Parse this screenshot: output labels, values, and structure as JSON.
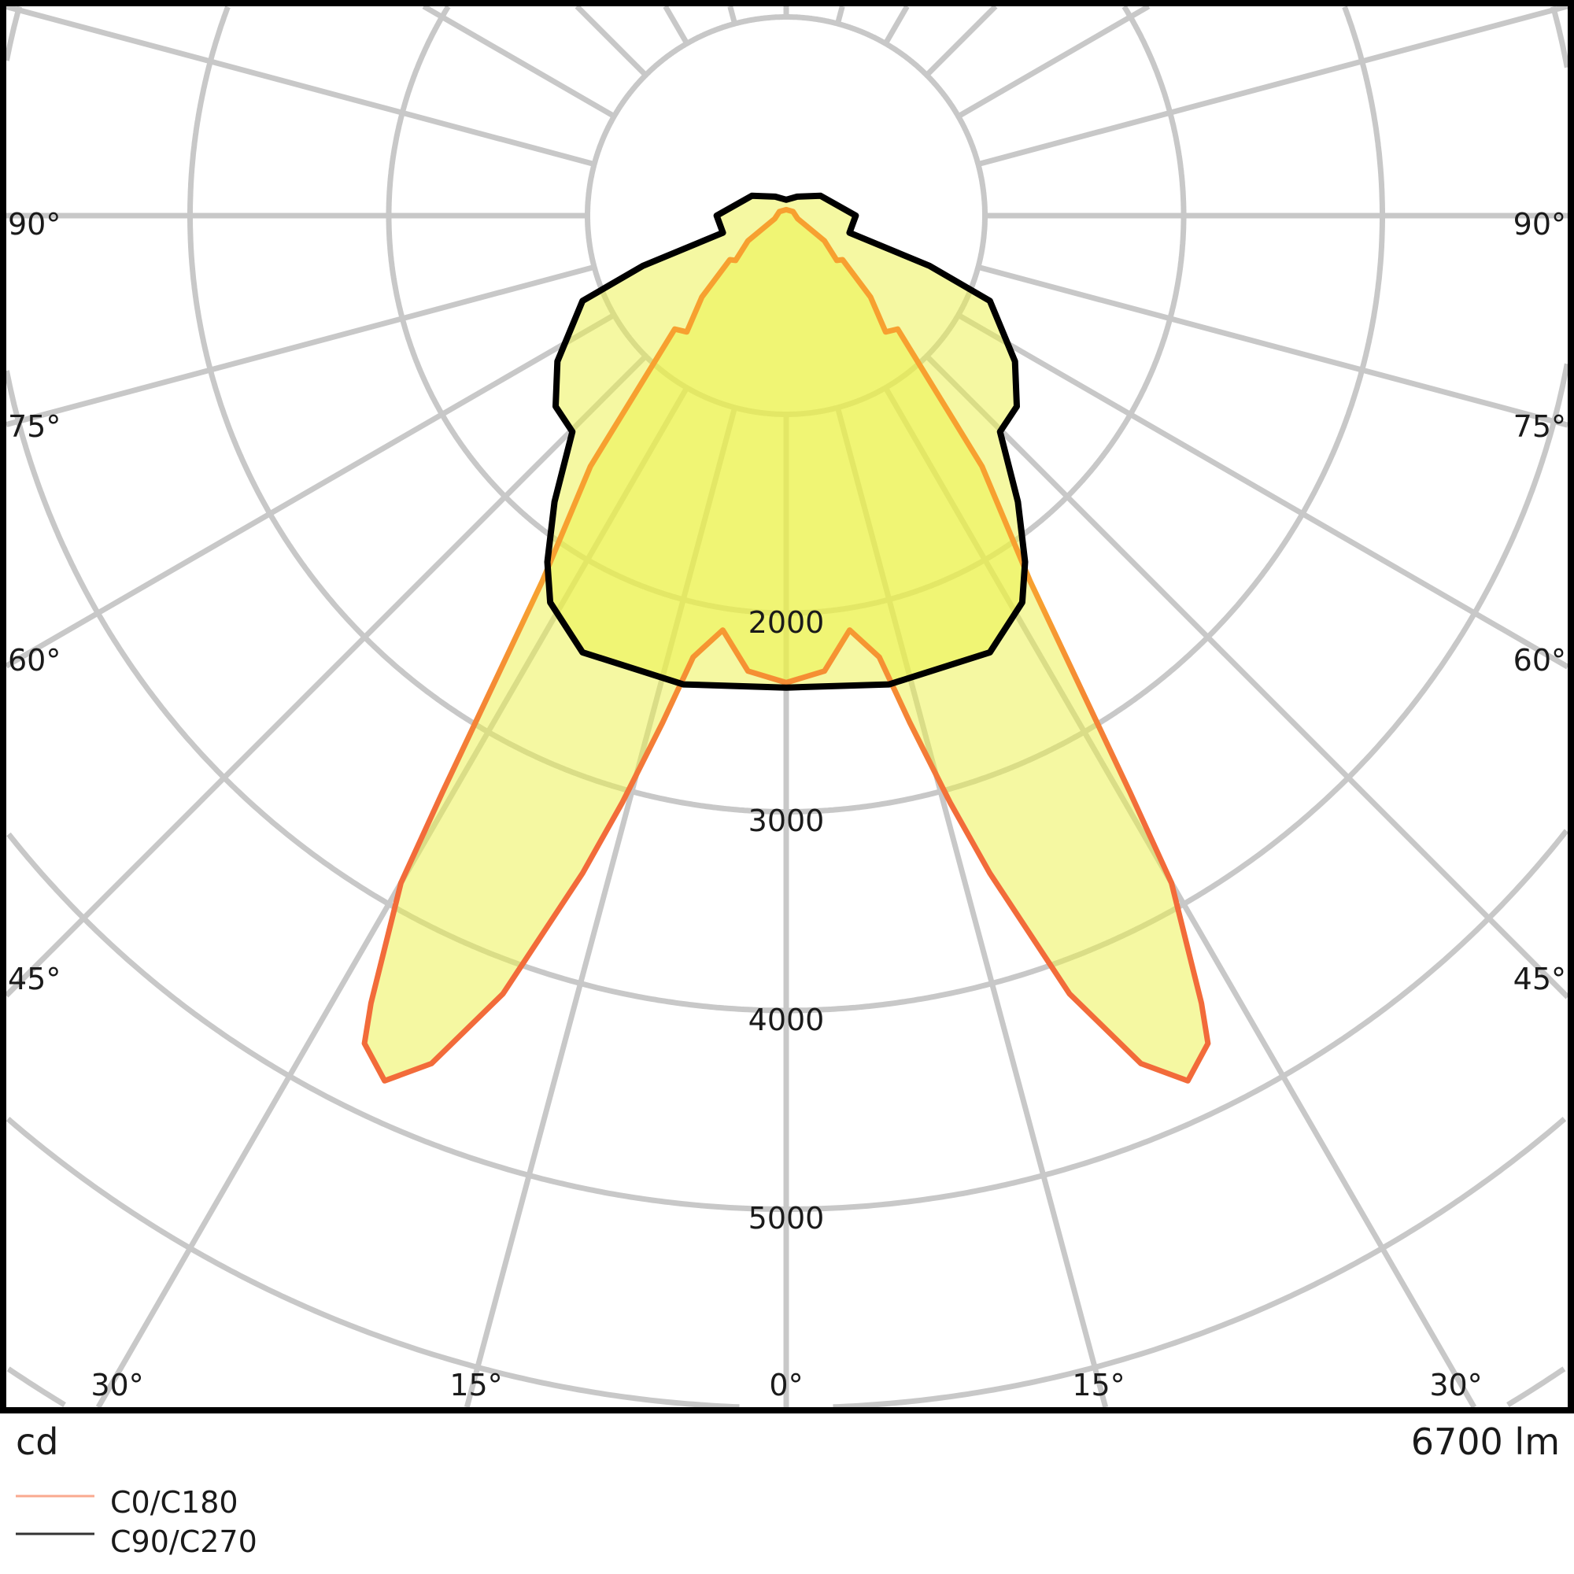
{
  "chart_data": {
    "type": "polar",
    "unit_label": "cd",
    "flux_label": "6700 lm",
    "radial_ticks": [
      1000,
      2000,
      3000,
      4000,
      5000,
      6000,
      7000
    ],
    "radial_tick_labels": [
      "2000",
      "3000",
      "4000",
      "5000"
    ],
    "angle_step_deg": 15,
    "angle_labels": {
      "side": [
        "90°",
        "75°",
        "60°",
        "45°"
      ],
      "bottom": [
        "30°",
        "15°",
        "0°",
        "15°",
        "30°"
      ]
    },
    "grid": true,
    "legend_placement": "bottom-left",
    "series": [
      {
        "name": "C0/C180",
        "color": "#f26b3a",
        "color_upper": "#f7a030",
        "points": [
          [
            0,
            2350
          ],
          [
            4.8,
            2300
          ],
          [
            8.7,
            2110
          ],
          [
            11.9,
            2270
          ],
          [
            13.7,
            2625
          ],
          [
            15.6,
            3066
          ],
          [
            17.2,
            3463
          ],
          [
            20,
            4167
          ],
          [
            22.7,
            4625
          ],
          [
            24.9,
            4800
          ],
          [
            27,
            4675
          ],
          [
            27.8,
            4480
          ],
          [
            30,
            3877
          ],
          [
            30.8,
            3380
          ],
          [
            33.7,
            2215
          ],
          [
            38,
            1600
          ],
          [
            44.5,
            800
          ],
          [
            40.5,
            770
          ],
          [
            46,
            590
          ],
          [
            52,
            360
          ],
          [
            48.5,
            340
          ],
          [
            56.7,
            230
          ],
          [
            75,
            60
          ],
          [
            120,
            40
          ],
          [
            180,
            30
          ]
        ]
      },
      {
        "name": "C90/C270",
        "color": "#000000",
        "points": [
          [
            0,
            2375
          ],
          [
            12.4,
            2415
          ],
          [
            25,
            2425
          ],
          [
            31.4,
            2280
          ],
          [
            34.6,
            2117
          ],
          [
            39,
            1853
          ],
          [
            44.7,
            1530
          ],
          [
            50.4,
            1506
          ],
          [
            57.5,
            1365
          ],
          [
            67.3,
            1111
          ],
          [
            70.7,
            764
          ],
          [
            74.9,
            330
          ],
          [
            90,
            350
          ],
          [
            120,
            200
          ],
          [
            150,
            110
          ],
          [
            180,
            80
          ]
        ]
      }
    ]
  }
}
